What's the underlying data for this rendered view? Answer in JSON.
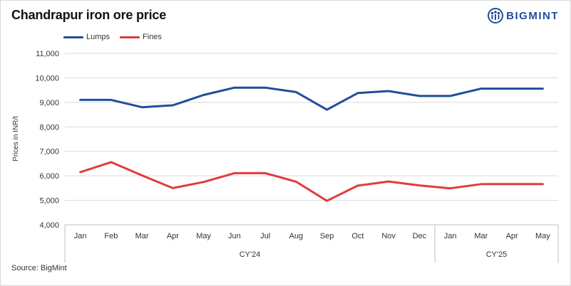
{
  "title": "Chandrapur iron ore price",
  "brand": {
    "name": "BIGMINT",
    "icon": "bigmint-logo-icon",
    "color": "#1f4e9c"
  },
  "source": "Source: BigMint",
  "chart_data": {
    "type": "line",
    "categories": [
      "Jan",
      "Feb",
      "Mar",
      "Apr",
      "May",
      "Jun",
      "Jul",
      "Aug",
      "Sep",
      "Oct",
      "Nov",
      "Dec",
      "Jan",
      "Mar",
      "Apr",
      "May"
    ],
    "groups": [
      {
        "label": "CY'24",
        "span": 12
      },
      {
        "label": "CY'25",
        "span": 4
      }
    ],
    "series": [
      {
        "name": "Lumps",
        "color": "#1f4e9c",
        "values": [
          9100,
          9100,
          8800,
          8880,
          9300,
          9600,
          9600,
          9420,
          8700,
          9380,
          9460,
          9260,
          9260,
          9560,
          9560,
          9560
        ]
      },
      {
        "name": "Fines",
        "color": "#e03c3c",
        "values": [
          6150,
          6560,
          6020,
          5500,
          5750,
          6110,
          6110,
          5760,
          4980,
          5600,
          5770,
          5610,
          5490,
          5660,
          5660,
          5660
        ]
      }
    ],
    "ylabel": "Prices in INR/t",
    "ylim": [
      4000,
      11000
    ],
    "yticks": [
      "4,000",
      "5,000",
      "6,000",
      "7,000",
      "8,000",
      "9,000",
      "10,000",
      "11,000"
    ],
    "grid": true,
    "legend": "top-left"
  }
}
